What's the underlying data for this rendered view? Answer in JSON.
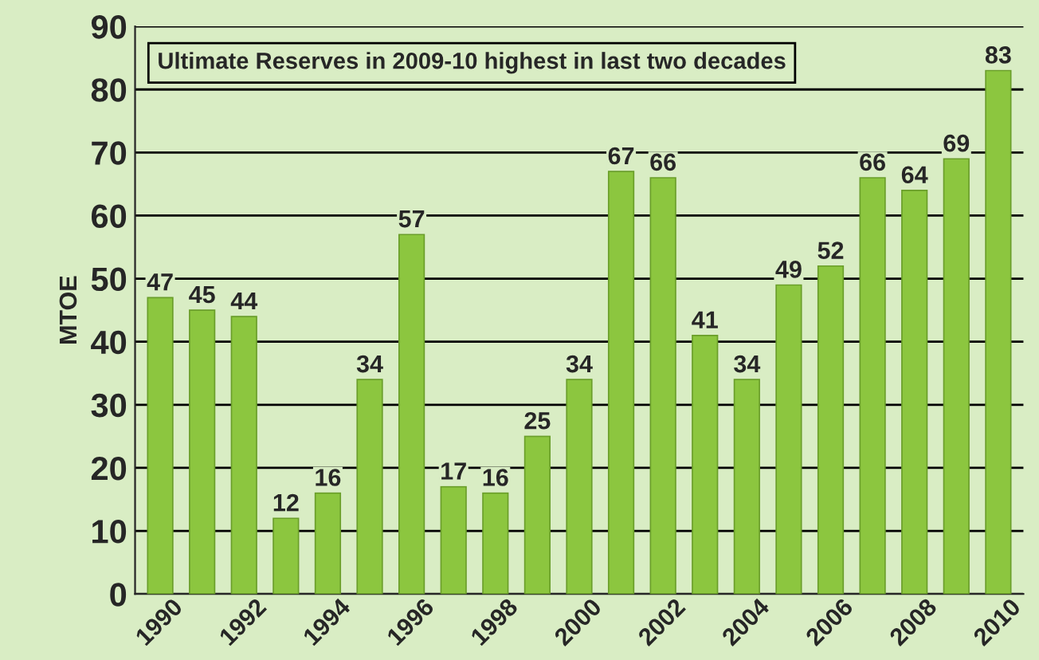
{
  "chart_data": {
    "type": "bar",
    "title": "Ultimate Reserves in 2009-10 highest in last two decades",
    "ylabel": "MTOE",
    "categories": [
      "1990",
      null,
      "1992",
      null,
      "1994",
      null,
      "1996",
      null,
      "1998",
      null,
      "2000",
      null,
      "2002",
      null,
      "2004",
      null,
      "2006",
      null,
      "2008",
      null,
      "2010"
    ],
    "values": [
      47,
      45,
      44,
      12,
      16,
      34,
      57,
      17,
      16,
      25,
      34,
      67,
      66,
      41,
      34,
      49,
      52,
      66,
      64,
      69,
      83
    ],
    "color": "#8cc63f",
    "ylim": [
      0,
      90
    ],
    "yticks": [
      0,
      10,
      20,
      30,
      40,
      50,
      60,
      70,
      80,
      90
    ],
    "grid": "y",
    "data_labels": true
  }
}
